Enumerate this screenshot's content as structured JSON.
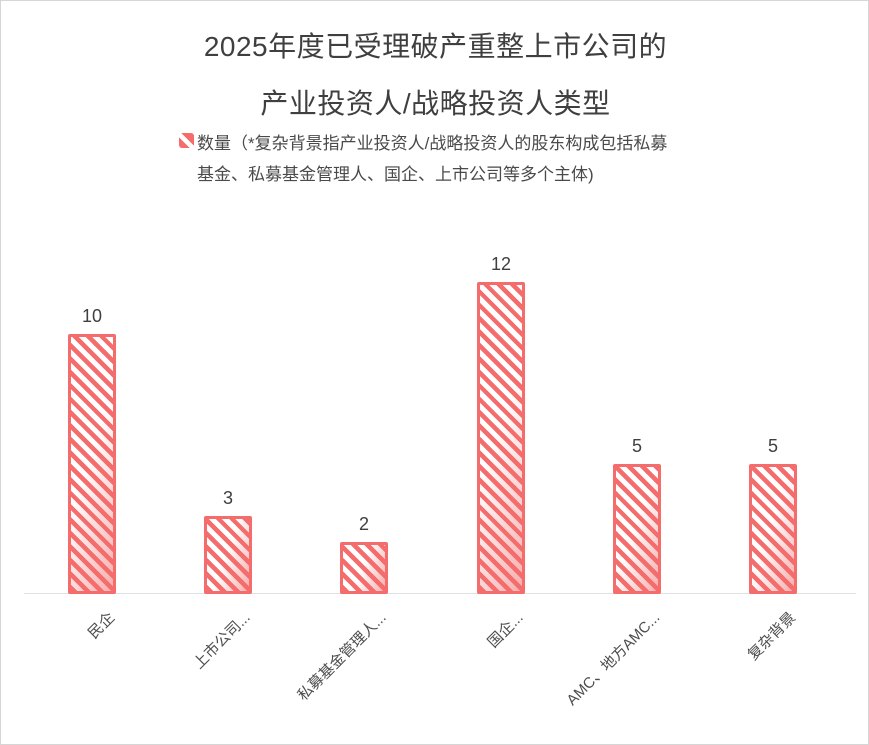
{
  "title": {
    "line1": "2025年度已受理破产重整上市公司的",
    "line2": "产业投资人/战略投资人类型"
  },
  "legend": {
    "series_label": "数量",
    "note_line1": "（*复杂背景指产业投资人/战略投资人的股东构成包括私募",
    "note_line2": "基金、私募基金管理人、国企、上市公司等多个主体)"
  },
  "colors": {
    "bar": "#f56c6c",
    "title_text": "#3f3f3f",
    "axis_line": "#e0e0e0",
    "frame_border": "#d6d6d6"
  },
  "chart_data": {
    "type": "bar",
    "title": "2025年度已受理破产重整上市公司的产业投资人/战略投资人类型",
    "series": [
      {
        "name": "数量（*复杂背景指产业投资人/战略投资人的股东构成包括私募基金、私募基金管理人、国企、上市公司等多个主体)",
        "values": [
          10,
          3,
          2,
          12,
          5,
          5
        ]
      }
    ],
    "categories": [
      "民企",
      "上市公司...",
      "私募基金管理人...",
      "国企...",
      "AMC、地方AMC...",
      "复杂背景"
    ],
    "values": [
      10,
      3,
      2,
      12,
      5,
      5
    ],
    "xlabel": "",
    "ylabel": "",
    "ylim": [
      0,
      12
    ],
    "grid": false,
    "legend_position": "top",
    "bar_pattern": "diagonal-hatch"
  }
}
